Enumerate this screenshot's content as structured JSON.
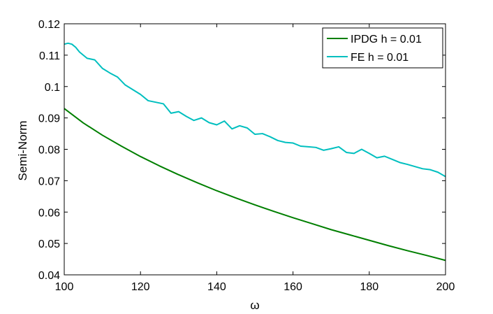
{
  "chart_data": {
    "type": "line",
    "title": "",
    "xlabel": "ω",
    "ylabel": "Semi-Norm",
    "xlim": [
      100,
      200
    ],
    "ylim": [
      0.04,
      0.12
    ],
    "xticks": [
      100,
      120,
      140,
      160,
      180,
      200
    ],
    "xtick_labels": [
      "100",
      "120",
      "140",
      "160",
      "180",
      "200"
    ],
    "yticks": [
      0.04,
      0.05,
      0.06,
      0.07,
      0.08,
      0.09,
      0.1,
      0.11,
      0.12
    ],
    "ytick_labels": [
      "0.04",
      "0.05",
      "0.06",
      "0.07",
      "0.08",
      "0.09",
      "0.1",
      "0.11",
      "0.12"
    ],
    "grid": false,
    "legend_position": "top-right",
    "series": [
      {
        "name": "IPDG h = 0.01",
        "color": "#007f00",
        "x": [
          100,
          105,
          110,
          115,
          120,
          125,
          130,
          135,
          140,
          145,
          150,
          155,
          160,
          165,
          170,
          175,
          180,
          185,
          190,
          195,
          200
        ],
        "y": [
          0.093,
          0.0884,
          0.0845,
          0.081,
          0.0777,
          0.0747,
          0.0719,
          0.0693,
          0.0668,
          0.0645,
          0.0623,
          0.0602,
          0.0582,
          0.0563,
          0.0544,
          0.0527,
          0.051,
          0.0493,
          0.0477,
          0.0462,
          0.0446
        ]
      },
      {
        "name": "FE h = 0.01",
        "color": "#00bfbf",
        "x": [
          100,
          101,
          102,
          103,
          104,
          106,
          108,
          110,
          112,
          114,
          116,
          118,
          120,
          122,
          124,
          126,
          128,
          130,
          132,
          134,
          136,
          138,
          140,
          142,
          144,
          146,
          148,
          150,
          152,
          154,
          156,
          158,
          160,
          162,
          164,
          166,
          168,
          170,
          172,
          174,
          176,
          178,
          180,
          182,
          184,
          186,
          188,
          190,
          192,
          194,
          196,
          198,
          200
        ],
        "y": [
          0.1135,
          0.1138,
          0.1135,
          0.1125,
          0.111,
          0.109,
          0.1085,
          0.1058,
          0.1043,
          0.103,
          0.1005,
          0.099,
          0.0975,
          0.0955,
          0.095,
          0.0945,
          0.0915,
          0.092,
          0.0905,
          0.0892,
          0.09,
          0.0885,
          0.0878,
          0.089,
          0.0865,
          0.0875,
          0.0868,
          0.0848,
          0.085,
          0.084,
          0.0828,
          0.0822,
          0.082,
          0.081,
          0.0808,
          0.0806,
          0.0797,
          0.0802,
          0.0808,
          0.079,
          0.0787,
          0.08,
          0.0787,
          0.0773,
          0.0778,
          0.0768,
          0.0758,
          0.0752,
          0.0745,
          0.0738,
          0.0735,
          0.0727,
          0.0713
        ]
      }
    ]
  }
}
